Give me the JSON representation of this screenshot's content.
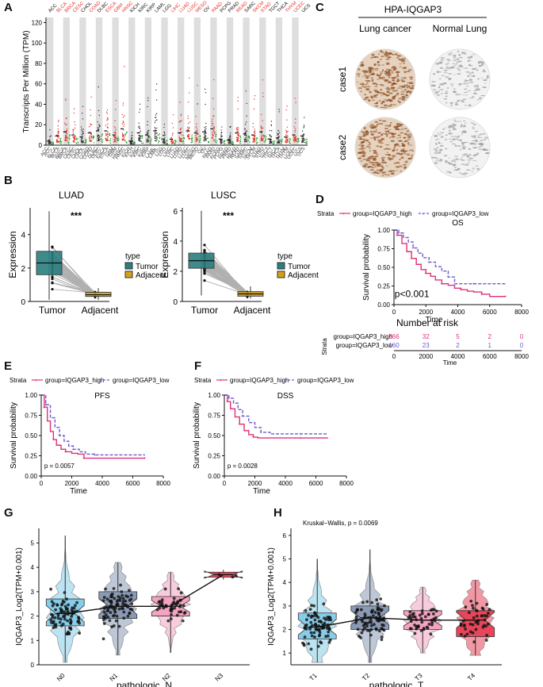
{
  "colors": {
    "tumor": "#2a7f80",
    "adjacent": "#d4a017",
    "high": "#e0307a",
    "low": "#6a5acd",
    "gtex_red": "#e8322b",
    "n0": "#87cde9",
    "n1": "#8a9ab5",
    "n2": "#f4a3c0",
    "n3": "#e8455a",
    "t1": "#87cde9",
    "t2": "#8a9ab5",
    "t3": "#f4a3c0",
    "t4": "#e8455a"
  },
  "panels": {
    "A": "A",
    "B": "B",
    "C": "C",
    "D": "D",
    "E": "E",
    "F": "F",
    "G": "G",
    "H": "H"
  },
  "chart_data": [
    {
      "panel": "A",
      "type": "scatter",
      "ylabel": "Transcripts Per Million (TPM)",
      "yticks": [
        0,
        20,
        40,
        60,
        80,
        100,
        120
      ],
      "ylim": [
        0,
        125
      ],
      "cancers": [
        {
          "name": "ACC",
          "red": false,
          "median": 4
        },
        {
          "name": "BLCA",
          "red": true,
          "median": 9
        },
        {
          "name": "BRCA",
          "red": true,
          "median": 13
        },
        {
          "name": "CESC",
          "red": true,
          "median": 10
        },
        {
          "name": "CHOL",
          "red": false,
          "median": 8
        },
        {
          "name": "COAD",
          "red": true,
          "median": 12
        },
        {
          "name": "DLBC",
          "red": false,
          "median": 14
        },
        {
          "name": "ESCA",
          "red": true,
          "median": 14
        },
        {
          "name": "GBM",
          "red": true,
          "median": 10
        },
        {
          "name": "HNSC",
          "red": true,
          "median": 16
        },
        {
          "name": "KICH",
          "red": false,
          "median": 4
        },
        {
          "name": "KIRC",
          "red": false,
          "median": 12
        },
        {
          "name": "KIRP",
          "red": false,
          "median": 10
        },
        {
          "name": "LAML",
          "red": false,
          "median": 14
        },
        {
          "name": "LGG",
          "red": false,
          "median": 6
        },
        {
          "name": "LIHC",
          "red": true,
          "median": 6
        },
        {
          "name": "LUAD",
          "red": true,
          "median": 12
        },
        {
          "name": "LUSC",
          "red": true,
          "median": 14
        },
        {
          "name": "MESO",
          "red": true,
          "median": 12
        },
        {
          "name": "OV",
          "red": false,
          "median": 13
        },
        {
          "name": "PAAD",
          "red": true,
          "median": 16
        },
        {
          "name": "PCPG",
          "red": false,
          "median": 6
        },
        {
          "name": "PRAD",
          "red": false,
          "median": 5
        },
        {
          "name": "READ",
          "red": true,
          "median": 12
        },
        {
          "name": "SARC",
          "red": false,
          "median": 11
        },
        {
          "name": "SKCM",
          "red": true,
          "median": 10
        },
        {
          "name": "STAD",
          "red": true,
          "median": 13
        },
        {
          "name": "TGCT",
          "red": false,
          "median": 6
        },
        {
          "name": "THCA",
          "red": false,
          "median": 7
        },
        {
          "name": "THYM",
          "red": true,
          "median": 8
        },
        {
          "name": "UCEC",
          "red": true,
          "median": 10
        },
        {
          "name": "UCS",
          "red": false,
          "median": 9
        }
      ]
    },
    {
      "panel": "B-LUAD",
      "type": "box",
      "title": "LUAD",
      "xlabel": "",
      "ylabel": "Expression",
      "categories": [
        "Tumor",
        "Adjacent"
      ],
      "yticks": [
        0,
        2,
        4
      ],
      "ylim": [
        0,
        5.6
      ],
      "tumor_box": {
        "min": 0.1,
        "q1": 1.6,
        "median": 2.3,
        "q3": 3.0,
        "max": 5.4
      },
      "adjacent_box": {
        "min": 0.1,
        "q1": 0.3,
        "median": 0.4,
        "q3": 0.55,
        "max": 0.8
      },
      "significance": "***",
      "legend": {
        "title": "type",
        "items": [
          "Tumor",
          "Adjacent"
        ]
      }
    },
    {
      "panel": "B-LUSC",
      "type": "box",
      "title": "LUSC",
      "xlabel": "",
      "ylabel": "Expression",
      "categories": [
        "Tumor",
        "Adjacent"
      ],
      "yticks": [
        0,
        2,
        4,
        6
      ],
      "ylim": [
        0,
        6.2
      ],
      "tumor_box": {
        "min": 0.4,
        "q1": 2.2,
        "median": 2.7,
        "q3": 3.2,
        "max": 6.0
      },
      "adjacent_box": {
        "min": 0.2,
        "q1": 0.35,
        "median": 0.5,
        "q3": 0.65,
        "max": 1.0
      },
      "significance": "***",
      "legend": {
        "title": "type",
        "items": [
          "Tumor",
          "Adjacent"
        ]
      }
    },
    {
      "panel": "D",
      "type": "line",
      "title": "OS",
      "xlabel": "Time",
      "ylabel": "Survival probability",
      "xlim": [
        0,
        8000
      ],
      "xticks": [
        0,
        2000,
        4000,
        6000,
        8000
      ],
      "yticks": [
        0.0,
        0.25,
        0.5,
        0.75,
        1.0
      ],
      "ylim": [
        0,
        1.05
      ],
      "strata_label": "Strata",
      "series": [
        {
          "name": "group=IQGAP3_high",
          "x": [
            0,
            200,
            500,
            800,
            1100,
            1400,
            1700,
            2000,
            2300,
            2600,
            3000,
            3400,
            3800,
            4200,
            4600,
            5000,
            5500,
            6000,
            6400,
            7000
          ],
          "y": [
            1.0,
            0.93,
            0.82,
            0.71,
            0.62,
            0.54,
            0.47,
            0.42,
            0.38,
            0.33,
            0.28,
            0.26,
            0.22,
            0.2,
            0.18,
            0.17,
            0.14,
            0.11,
            0.11,
            0.11
          ]
        },
        {
          "name": "group=IQGAP3_low",
          "x": [
            0,
            300,
            600,
            900,
            1200,
            1500,
            1800,
            2200,
            2600,
            3000,
            3400,
            3800,
            4200,
            5000,
            6000,
            7000
          ],
          "y": [
            1.0,
            0.96,
            0.9,
            0.84,
            0.76,
            0.69,
            0.63,
            0.57,
            0.51,
            0.45,
            0.37,
            0.28,
            0.28,
            0.28,
            0.28,
            0.28
          ]
        }
      ],
      "pvalue": "p<0.001",
      "risk_table": {
        "title": "Number at risk",
        "xlabel": "Time",
        "strata_axis": "Strata",
        "rows": [
          {
            "label": "group=IQGAP3_high",
            "counts": [
              "366",
              "32",
              "5",
              "2",
              "0"
            ]
          },
          {
            "label": "group=IQGAP3_low",
            "counts": [
              "160",
              "23",
              "2",
              "1",
              "0"
            ]
          }
        ]
      }
    },
    {
      "panel": "E",
      "type": "line",
      "title": "PFS",
      "xlabel": "Time",
      "ylabel": "Survival probability",
      "xlim": [
        0,
        8000
      ],
      "xticks": [
        0,
        2000,
        4000,
        6000,
        8000
      ],
      "yticks": [
        0.0,
        0.25,
        0.5,
        0.75,
        1.0
      ],
      "ylim": [
        0,
        1.05
      ],
      "strata_label": "Strata",
      "series": [
        {
          "name": "group=IQGAP3_high",
          "x": [
            0,
            200,
            400,
            600,
            800,
            1000,
            1300,
            1600,
            2000,
            2400,
            2800,
            3500,
            5000,
            6800
          ],
          "y": [
            1.0,
            0.85,
            0.68,
            0.55,
            0.45,
            0.38,
            0.33,
            0.3,
            0.28,
            0.27,
            0.22,
            0.22,
            0.22,
            0.22
          ]
        },
        {
          "name": "group=IQGAP3_low",
          "x": [
            0,
            300,
            600,
            900,
            1200,
            1500,
            1800,
            2100,
            2500,
            2900,
            3500,
            5000,
            6800
          ],
          "y": [
            1.0,
            0.88,
            0.72,
            0.6,
            0.5,
            0.43,
            0.37,
            0.33,
            0.3,
            0.27,
            0.26,
            0.26,
            0.26
          ]
        }
      ],
      "pvalue": "p = 0.0057"
    },
    {
      "panel": "F",
      "type": "line",
      "title": "DSS",
      "xlabel": "Time",
      "ylabel": "Survival probability",
      "xlim": [
        0,
        8000
      ],
      "xticks": [
        0,
        2000,
        4000,
        6000,
        8000
      ],
      "yticks": [
        0.0,
        0.25,
        0.5,
        0.75,
        1.0
      ],
      "ylim": [
        0,
        1.05
      ],
      "strata_label": "Strata",
      "series": [
        {
          "name": "group=IQGAP3_high",
          "x": [
            0,
            200,
            400,
            700,
            1000,
            1300,
            1600,
            1900,
            2200,
            3000,
            5000,
            6800
          ],
          "y": [
            1.0,
            0.92,
            0.83,
            0.73,
            0.64,
            0.56,
            0.51,
            0.48,
            0.47,
            0.47,
            0.47,
            0.47
          ]
        },
        {
          "name": "group=IQGAP3_low",
          "x": [
            0,
            300,
            600,
            900,
            1200,
            1600,
            2000,
            2400,
            3000,
            4000,
            5000,
            6800
          ],
          "y": [
            1.0,
            0.96,
            0.9,
            0.82,
            0.74,
            0.66,
            0.6,
            0.54,
            0.52,
            0.52,
            0.52,
            0.52
          ]
        }
      ],
      "pvalue": "p = 0.0028"
    },
    {
      "panel": "G",
      "type": "box",
      "title": "",
      "xlabel": "pathologic_N",
      "ylabel": "IQGAP3_Log2(TPM+0.001)",
      "yticks": [
        0,
        1,
        2,
        3,
        4,
        5
      ],
      "ylim": [
        0,
        5.6
      ],
      "groups": [
        {
          "name": "N0",
          "min": 0.1,
          "q1": 1.6,
          "median": 2.1,
          "q3": 2.7,
          "max": 5.3
        },
        {
          "name": "N1",
          "min": 0.4,
          "q1": 1.9,
          "median": 2.4,
          "q3": 3.0,
          "max": 4.2
        },
        {
          "name": "N2",
          "min": 0.5,
          "q1": 2.0,
          "median": 2.4,
          "q3": 2.8,
          "max": 3.8
        },
        {
          "name": "N3",
          "min": 3.5,
          "q1": 3.6,
          "median": 3.7,
          "q3": 3.8,
          "max": 3.9
        }
      ]
    },
    {
      "panel": "H",
      "type": "box",
      "title": "",
      "xlabel": "pathologic_T",
      "ylabel": "IQGAP3_Log2(TPM+0.001)",
      "yticks": [
        1,
        2,
        3,
        4,
        5,
        6
      ],
      "ylim": [
        0.5,
        6.3
      ],
      "annotation": "Kruskal−Wallis, p = 0.0069",
      "groups": [
        {
          "name": "T1",
          "min": 0.6,
          "q1": 1.6,
          "median": 2.1,
          "q3": 2.7,
          "max": 5.0
        },
        {
          "name": "T2",
          "min": 0.6,
          "q1": 2.0,
          "median": 2.5,
          "q3": 3.0,
          "max": 5.4
        },
        {
          "name": "T3",
          "min": 1.0,
          "q1": 2.0,
          "median": 2.4,
          "q3": 2.8,
          "max": 3.8
        },
        {
          "name": "T4",
          "min": 0.9,
          "q1": 1.7,
          "median": 2.4,
          "q3": 2.8,
          "max": 4.1
        }
      ]
    }
  ],
  "panel_c": {
    "title": "HPA-IQGAP3",
    "col1": "Lung cancer",
    "col2": "Normal Lung",
    "row1": "case1",
    "row2": "case2"
  }
}
